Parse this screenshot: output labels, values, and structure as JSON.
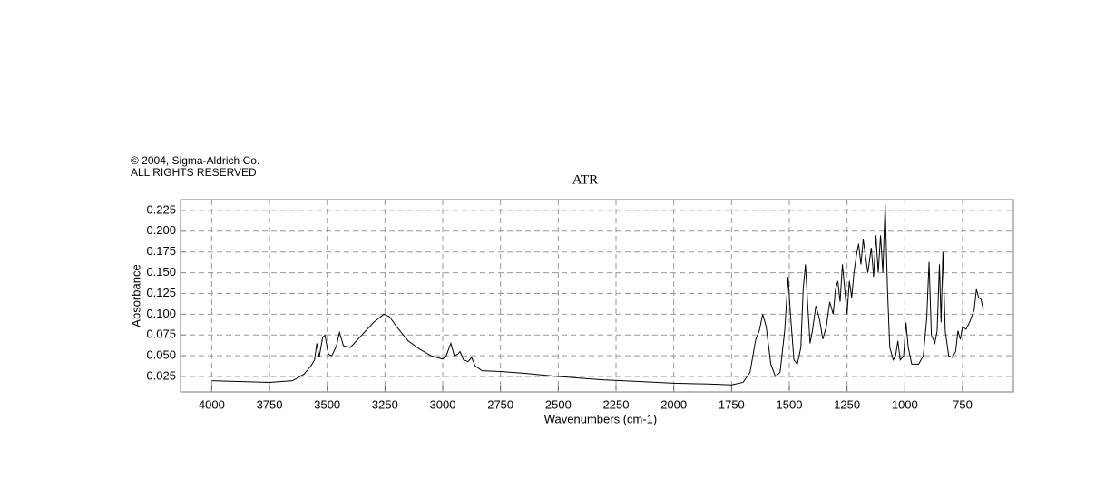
{
  "chart_data": {
    "type": "line",
    "copyright": "© 2004, Sigma-Aldrich Co.",
    "rights": "ALL RIGHTS RESERVED",
    "title": "ATR",
    "x_label": "Wavenumbers (cm-1)",
    "y_label": "Absorbance",
    "color": "#000000",
    "grid": true,
    "xlim": [
      4135,
      530
    ],
    "ylim": [
      0.0065,
      0.238
    ],
    "xticks": [
      4000,
      3750,
      3500,
      3250,
      3000,
      2750,
      2500,
      2250,
      2000,
      1750,
      1500,
      1250,
      1000,
      750
    ],
    "yticks": [
      0.025,
      {
        "value": 0.05,
        "label": "0.050"
      },
      0.075,
      {
        "value": 0.1,
        "label": "0.100"
      },
      0.125,
      {
        "value": 0.15,
        "label": "0.150"
      },
      0.175,
      {
        "value": 0.2,
        "label": "0.200"
      },
      0.225
    ],
    "x": [
      4000,
      3750,
      3650,
      3600,
      3570,
      3555,
      3545,
      3535,
      3520,
      3510,
      3495,
      3480,
      3460,
      3447,
      3430,
      3400,
      3350,
      3300,
      3255,
      3230,
      3200,
      3150,
      3100,
      3050,
      3000,
      2985,
      2965,
      2950,
      2935,
      2925,
      2910,
      2890,
      2875,
      2860,
      2830,
      2750,
      2650,
      2500,
      2300,
      2150,
      2000,
      1850,
      1750,
      1700,
      1670,
      1645,
      1630,
      1615,
      1600,
      1580,
      1560,
      1540,
      1520,
      1505,
      1495,
      1480,
      1465,
      1450,
      1440,
      1430,
      1420,
      1410,
      1400,
      1385,
      1370,
      1355,
      1340,
      1325,
      1310,
      1300,
      1290,
      1280,
      1270,
      1260,
      1250,
      1240,
      1230,
      1220,
      1210,
      1200,
      1190,
      1180,
      1170,
      1160,
      1145,
      1135,
      1125,
      1115,
      1105,
      1095,
      1085,
      1075,
      1065,
      1050,
      1040,
      1030,
      1020,
      1005,
      995,
      985,
      970,
      940,
      920,
      905,
      895,
      885,
      870,
      860,
      850,
      843,
      835,
      825,
      810,
      795,
      780,
      770,
      760,
      750,
      735,
      720,
      700,
      690,
      680,
      670,
      660
    ],
    "values": [
      0.02,
      0.018,
      0.02,
      0.028,
      0.038,
      0.045,
      0.065,
      0.048,
      0.072,
      0.075,
      0.052,
      0.05,
      0.062,
      0.078,
      0.062,
      0.06,
      0.075,
      0.09,
      0.1,
      0.097,
      0.085,
      0.068,
      0.058,
      0.05,
      0.046,
      0.05,
      0.065,
      0.05,
      0.052,
      0.055,
      0.045,
      0.043,
      0.048,
      0.038,
      0.032,
      0.031,
      0.029,
      0.025,
      0.021,
      0.019,
      0.017,
      0.016,
      0.015,
      0.018,
      0.03,
      0.07,
      0.08,
      0.1,
      0.085,
      0.04,
      0.025,
      0.03,
      0.08,
      0.145,
      0.1,
      0.045,
      0.04,
      0.06,
      0.13,
      0.16,
      0.11,
      0.065,
      0.08,
      0.11,
      0.095,
      0.07,
      0.085,
      0.115,
      0.1,
      0.13,
      0.14,
      0.115,
      0.16,
      0.13,
      0.1,
      0.14,
      0.12,
      0.15,
      0.17,
      0.185,
      0.16,
      0.19,
      0.17,
      0.15,
      0.18,
      0.145,
      0.195,
      0.15,
      0.195,
      0.15,
      0.232,
      0.13,
      0.06,
      0.045,
      0.05,
      0.068,
      0.045,
      0.05,
      0.09,
      0.06,
      0.04,
      0.04,
      0.05,
      0.095,
      0.163,
      0.075,
      0.065,
      0.08,
      0.16,
      0.09,
      0.175,
      0.08,
      0.05,
      0.048,
      0.055,
      0.08,
      0.07,
      0.085,
      0.082,
      0.09,
      0.105,
      0.13,
      0.12,
      0.118,
      0.105
    ]
  }
}
